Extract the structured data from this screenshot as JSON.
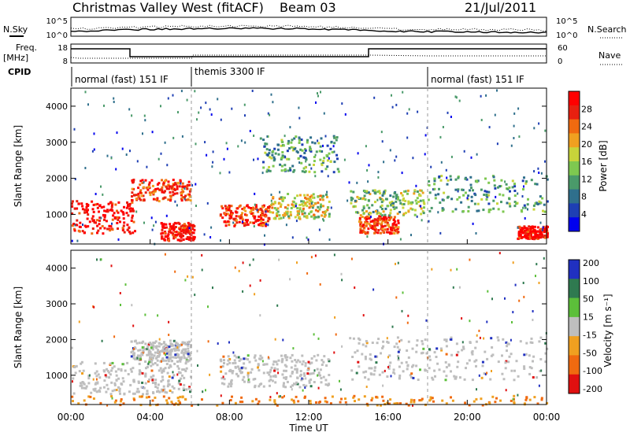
{
  "header": {
    "station": "Christmas Valley West (fitACF)",
    "beam": "Beam 03",
    "date": "21/Jul/2011"
  },
  "left_labels": {
    "nsky": "N.Sky",
    "freq": "Freq.",
    "freq_unit": "[MHz]",
    "cpid": "CPID"
  },
  "right_labels": {
    "nsearch": "N.Search",
    "nave": "Nave"
  },
  "noise_axis": {
    "top_left": "10^5",
    "bottom_left": "10^0",
    "top_right": "10^5",
    "bottom_right": "10^0"
  },
  "freq_axis": {
    "top_left": "18",
    "bottom_left": "8",
    "top_right": "60",
    "bottom_right": "0"
  },
  "cpid_segments": [
    {
      "label": "normal (fast) 151 IF"
    },
    {
      "label": "themis 3300 IF"
    },
    {
      "label": "normal (fast) 151 IF"
    }
  ],
  "x_axis": {
    "label": "Time UT",
    "ticks": [
      "00:00",
      "04:00",
      "08:00",
      "12:00",
      "16:00",
      "20:00",
      "00:00"
    ]
  },
  "power_panel": {
    "ylabel": "Slant Range [km]",
    "yticks": [
      "1000",
      "2000",
      "3000",
      "4000"
    ],
    "colorbar_label": "Power [dB]",
    "colorbar_ticks": [
      "4",
      "8",
      "12",
      "16",
      "20",
      "24",
      "28"
    ],
    "colors": [
      "#0000ee",
      "#1e3fb4",
      "#2f6f8c",
      "#4a9a6a",
      "#7ec850",
      "#c8d43a",
      "#f0a020",
      "#f06a10",
      "#e82010",
      "#ff0000"
    ]
  },
  "velocity_panel": {
    "ylabel": "Slant Range [km]",
    "yticks": [
      "1000",
      "2000",
      "3000",
      "4000"
    ],
    "colorbar_label": "Velocity [m s⁻¹]",
    "colorbar_ticks": [
      "200",
      "100",
      "50",
      "15",
      "-15",
      "-50",
      "-100",
      "-200"
    ],
    "colors": [
      "#2030c0",
      "#2f7a50",
      "#5cbf3a",
      "#bebebe",
      "#f0a020",
      "#f06a10",
      "#e01010"
    ]
  },
  "chart_data": {
    "type": "heatmap",
    "x_range": [
      "00:00",
      "24:00"
    ],
    "y_range_km": [
      180,
      4500
    ],
    "mode_changes_ut": [
      "06:00",
      "18:00"
    ],
    "power_regions": [
      {
        "t_start": 0.0,
        "t_end": 3.2,
        "r_start": 500,
        "r_end": 1400,
        "level_db": 28
      },
      {
        "t_start": 3.0,
        "t_end": 6.0,
        "r_start": 1400,
        "r_end": 2000,
        "level_db": 24
      },
      {
        "t_start": 4.5,
        "t_end": 6.2,
        "r_start": 300,
        "r_end": 800,
        "level_db": 28
      },
      {
        "t_start": 7.5,
        "t_end": 10.0,
        "r_start": 700,
        "r_end": 1300,
        "level_db": 24
      },
      {
        "t_start": 10.0,
        "t_end": 13.0,
        "r_start": 900,
        "r_end": 1600,
        "level_db": 16
      },
      {
        "t_start": 9.5,
        "t_end": 13.5,
        "r_start": 2200,
        "r_end": 3200,
        "level_db": 8
      },
      {
        "t_start": 14.5,
        "t_end": 16.5,
        "r_start": 500,
        "r_end": 1000,
        "level_db": 24
      },
      {
        "t_start": 14.0,
        "t_end": 18.0,
        "r_start": 1000,
        "r_end": 1700,
        "level_db": 12
      },
      {
        "t_start": 18.0,
        "t_end": 24.0,
        "r_start": 1100,
        "r_end": 2100,
        "level_db": 8
      },
      {
        "t_start": 22.5,
        "t_end": 24.0,
        "r_start": 350,
        "r_end": 700,
        "level_db": 28
      }
    ],
    "velocity_regions": [
      {
        "t_start": 0.0,
        "t_end": 6.0,
        "r_start": 500,
        "r_end": 1400,
        "velocity": 0
      },
      {
        "t_start": 3.0,
        "t_end": 6.0,
        "r_start": 1400,
        "r_end": 2000,
        "velocity": 0
      },
      {
        "t_start": 7.5,
        "t_end": 13.0,
        "r_start": 700,
        "r_end": 1600,
        "velocity": 0
      },
      {
        "t_start": 14.0,
        "t_end": 24.0,
        "r_start": 900,
        "r_end": 2100,
        "velocity": 0
      },
      {
        "t_start": 0.0,
        "t_end": 24.0,
        "r_start": 180,
        "r_end": 450,
        "velocity": -50
      }
    ]
  }
}
